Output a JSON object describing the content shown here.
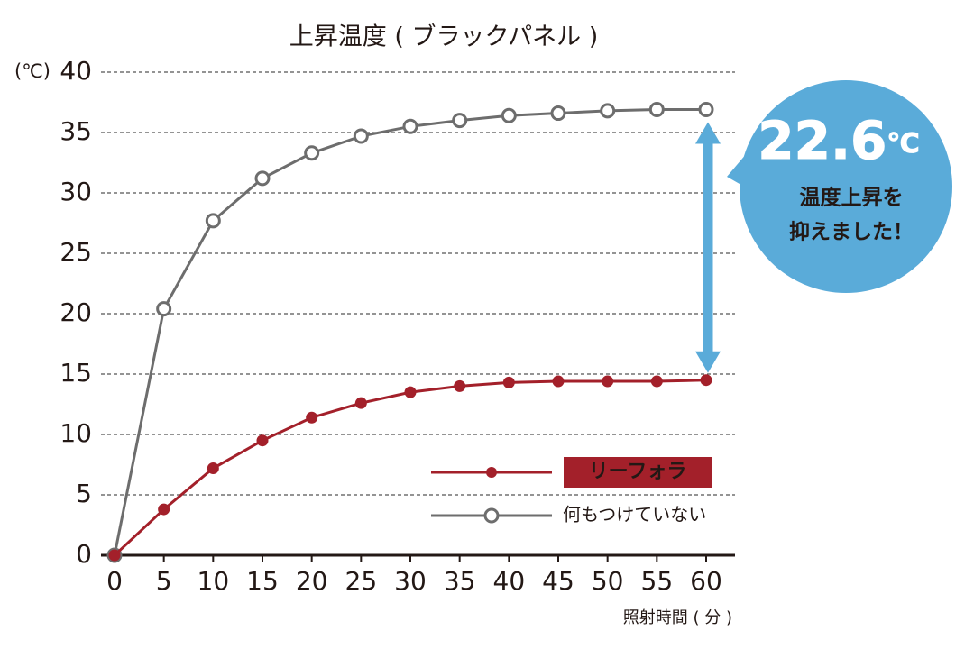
{
  "chart_data": {
    "type": "line",
    "title": "上昇温度 ( ブラックパネル )",
    "ylabel": "(℃)",
    "xlabel": "照射時間 ( 分 )",
    "x": [
      0,
      5,
      10,
      15,
      20,
      25,
      30,
      35,
      40,
      45,
      50,
      55,
      60
    ],
    "series": [
      {
        "name": "何もつけていない",
        "color": "#6d6d6d",
        "values": [
          0,
          20.4,
          27.7,
          31.2,
          33.3,
          34.7,
          35.5,
          36.0,
          36.4,
          36.6,
          36.8,
          36.9,
          36.9
        ]
      },
      {
        "name": "リーフォラ",
        "color": "#a3202a",
        "values": [
          0,
          3.8,
          7.2,
          9.5,
          11.4,
          12.6,
          13.5,
          14.0,
          14.3,
          14.4,
          14.4,
          14.4,
          14.5
        ]
      }
    ],
    "xlim": [
      0,
      60
    ],
    "xticks": [
      0,
      5,
      10,
      15,
      20,
      25,
      30,
      35,
      40,
      45,
      50,
      55,
      60
    ],
    "ylim": [
      0,
      40
    ],
    "yticks": [
      0,
      5,
      10,
      15,
      20,
      25,
      30,
      35,
      40
    ],
    "grid": true,
    "annotation": {
      "value": "22.6",
      "unit": "℃",
      "lines": [
        "温度上昇を",
        "抑えました！"
      ],
      "color": "#5aabd9"
    }
  }
}
